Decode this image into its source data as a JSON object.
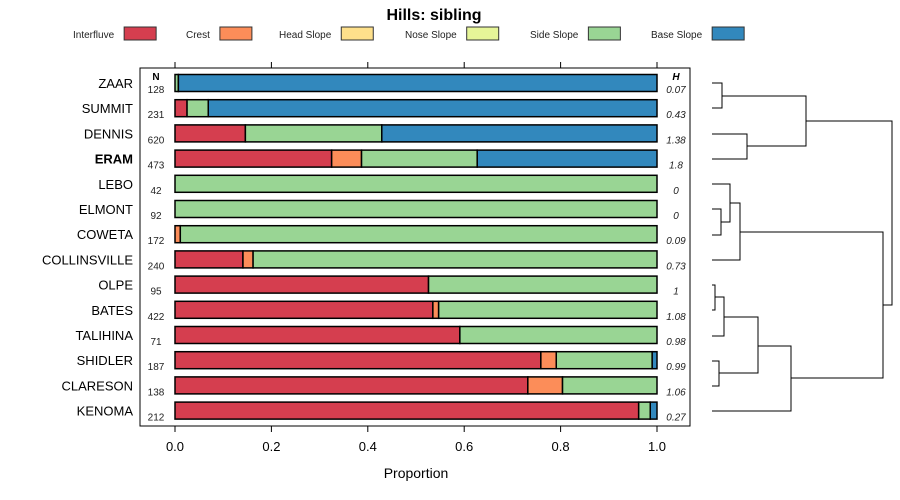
{
  "chart_data": {
    "type": "bar",
    "subtype": "stacked-horizontal-proportion",
    "title": "Hills: sibling",
    "xlabel": "Proportion",
    "xlim": [
      0,
      1
    ],
    "xticks": [
      "0.0",
      "0.2",
      "0.4",
      "0.6",
      "0.8",
      "1.0"
    ],
    "n_header": "N",
    "h_header": "H",
    "legend_position": "top",
    "series": [
      {
        "name": "Interfluve",
        "color": "#D53E4F"
      },
      {
        "name": "Crest",
        "color": "#FC8D59"
      },
      {
        "name": "Head Slope",
        "color": "#FEE08B"
      },
      {
        "name": "Nose Slope",
        "color": "#E6F598"
      },
      {
        "name": "Side Slope",
        "color": "#99D594"
      },
      {
        "name": "Base Slope",
        "color": "#3288BD"
      }
    ],
    "rows": [
      {
        "label": "ZAAR",
        "n": "128",
        "h": "0.07",
        "bold": false,
        "values": [
          0,
          0,
          0,
          0,
          0.007,
          0.993
        ]
      },
      {
        "label": "SUMMIT",
        "n": "231",
        "h": "0.43",
        "bold": false,
        "values": [
          0.025,
          0,
          0,
          0,
          0.044,
          0.931
        ]
      },
      {
        "label": "DENNIS",
        "n": "620",
        "h": "1.38",
        "bold": false,
        "values": [
          0.146,
          0,
          0,
          0,
          0.283,
          0.571
        ]
      },
      {
        "label": "ERAM",
        "n": "473",
        "h": "1.8",
        "bold": true,
        "values": [
          0.325,
          0.062,
          0,
          0,
          0.24,
          0.373
        ]
      },
      {
        "label": "LEBO",
        "n": "42",
        "h": "0",
        "bold": false,
        "values": [
          0,
          0,
          0,
          0,
          1,
          0
        ]
      },
      {
        "label": "ELMONT",
        "n": "92",
        "h": "0",
        "bold": false,
        "values": [
          0,
          0,
          0,
          0,
          1,
          0
        ]
      },
      {
        "label": "COWETA",
        "n": "172",
        "h": "0.09",
        "bold": false,
        "values": [
          0,
          0.011,
          0,
          0,
          0.989,
          0
        ]
      },
      {
        "label": "COLLINSVILLE",
        "n": "240",
        "h": "0.73",
        "bold": false,
        "values": [
          0.141,
          0.021,
          0,
          0,
          0.838,
          0
        ]
      },
      {
        "label": "OLPE",
        "n": "95",
        "h": "1",
        "bold": false,
        "values": [
          0.526,
          0,
          0,
          0,
          0.474,
          0
        ]
      },
      {
        "label": "BATES",
        "n": "422",
        "h": "1.08",
        "bold": false,
        "values": [
          0.535,
          0.012,
          0,
          0,
          0.453,
          0
        ]
      },
      {
        "label": "TALIHINA",
        "n": "71",
        "h": "0.98",
        "bold": false,
        "values": [
          0.591,
          0,
          0,
          0,
          0.409,
          0
        ]
      },
      {
        "label": "SHIDLER",
        "n": "187",
        "h": "0.99",
        "bold": false,
        "values": [
          0.759,
          0.032,
          0,
          0,
          0.199,
          0.01
        ]
      },
      {
        "label": "CLARESON",
        "n": "138",
        "h": "1.06",
        "bold": false,
        "values": [
          0.732,
          0.072,
          0,
          0,
          0.196,
          0
        ]
      },
      {
        "label": "KENOMA",
        "n": "212",
        "h": "0.27",
        "bold": false,
        "values": [
          0.962,
          0,
          0,
          0,
          0.024,
          0.014
        ]
      }
    ]
  }
}
